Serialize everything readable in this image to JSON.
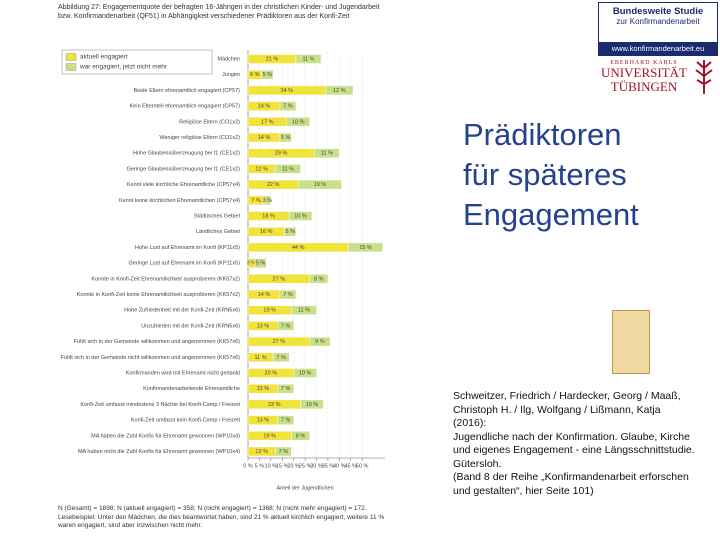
{
  "chart_data": {
    "type": "bar",
    "orientation": "horizontal",
    "stacked": true,
    "title": "Abbildung 27: Engagementquote der befragten 16-Jährigen in der christlichen Kinder- und Jugendarbeit bzw. Konfirmandenarbeit (QF51) in Abhängigkeit verschiedener Prädiktoren aus der Konfi-Zeit",
    "categories": [
      "Mädchen",
      "Jungen",
      "Beide Eltern ehrenamtlich engagiert (CP57)",
      "Kein Elternteil ehrenamtlich engagiert (CP57)",
      "Religiöse Eltern (CO1x2)",
      "Weniger religiöse Eltern (CO1x2)",
      "Hohe Glaubensüberzeugung bei t1 (CE1x2)",
      "Geringe Glaubensüberzeugung bei t1 (CE1x2)",
      "Kennt viele kirchliche Ehrenamtliche (CP57x4)",
      "Kennt keine kirchlichen Ehrenamtlichen (CP57x4)",
      "Städtisches Gebiet",
      "Ländliches Gebiet",
      "Hohe Lust auf Ehrenamt im Konfi (KP11x5)",
      "Geringe Lust auf Ehrenamt im Konfi (KP11x5)",
      "Konnte in Konfi-Zeit Ehrenamtlichkeit ausprobieren (KK57x2)",
      "Konnte in Konfi-Zeit keine Ehrenamtlichkeit ausprobieren (KK57x2)",
      "Hohe Zufriedenheit mit der Konfi-Zeit (KRN5x6)",
      "Unzufrieden mit der Konfi-Zeit (KRN5x6)",
      "Fühlt sich in der Gemeinde willkommen und angenommen (KK57x6)",
      "Fühlt sich in der Gemeinde nicht willkommen und angenommen (KK57x6)",
      "Konfirmanden wird mit Ehrenamt nicht gedankt",
      "Konfirmandenarbeitende Ehrenamtliche",
      "Konfi-Zeit umfasst mindestens 3 Nächte bei Konfi-Camp / Freizeit",
      "Konfi-Zeit umfasst kein Konfi-Camp / Freizeit",
      "MA haben die Zahl Konfis für Ehrenamt gewonnen (WP10x4)",
      "MA haben nicht die Zahl Konfis für Ehrenamt gewonnen (WP10x4)"
    ],
    "series": [
      {
        "name": "aktuell engagiert",
        "color": "#f2e33c",
        "values": [
          21,
          6,
          34,
          14,
          17,
          14,
          29,
          12,
          22,
          7,
          18,
          16,
          44,
          3,
          27,
          14,
          19,
          13,
          27,
          11,
          20,
          13,
          23,
          13,
          19,
          12
        ],
        "value_labels": [
          "21 %",
          "6 %",
          "34 %",
          "14 %",
          "17 %",
          "14 %",
          "29 %",
          "12 %",
          "22 %",
          "7 %",
          "18 %",
          "16 %",
          "44 %",
          "3 %",
          "27 %",
          "14 %",
          "19 %",
          "13 %",
          "27 %",
          "11 %",
          "20 %",
          "13 %",
          "23 %",
          "13 %",
          "19 %",
          "12 %"
        ]
      },
      {
        "name": "war engagiert, jetzt nicht mehr",
        "color": "#c9df8a",
        "values": [
          11,
          5,
          12,
          7,
          10,
          5,
          11,
          11,
          19,
          3,
          10,
          5,
          15,
          5,
          8,
          7,
          11,
          7,
          9,
          7,
          10,
          7,
          10,
          7,
          8,
          7
        ],
        "value_labels": [
          "11 %",
          "5 %",
          "12 %",
          "7 %",
          "10 %",
          "5 %",
          "11 %",
          "11 %",
          "19 %",
          "3 %",
          "10 %",
          "5 %",
          "15 %",
          "5 %",
          "8 %",
          "7 %",
          "11 %",
          "7 %",
          "9 %",
          "7 %",
          "10 %",
          "7 %",
          "10 %",
          "7 %",
          "8 %",
          "7 %"
        ]
      }
    ],
    "xlim": [
      0,
      60
    ],
    "xticks": [
      {
        "value": 0,
        "label": "0 %"
      },
      {
        "value": 5,
        "label": "5 %"
      },
      {
        "value": 10,
        "label": "10 %"
      },
      {
        "value": 15,
        "label": "15 %"
      },
      {
        "value": 20,
        "label": "20 %"
      },
      {
        "value": 25,
        "label": "25 %"
      },
      {
        "value": 30,
        "label": "30 %"
      },
      {
        "value": 35,
        "label": "35 %"
      },
      {
        "value": 40,
        "label": "40 %"
      },
      {
        "value": 45,
        "label": "45 %"
      },
      {
        "value": 50,
        "label": "50 %"
      }
    ],
    "xlabel": "Anteil der Jugendlichen",
    "legend": "top-left",
    "note": "N (Gesamt) = 1898; N (aktuell engagiert) = 358; N (nicht engagiert) = 1368; N (nicht mehr engagiert) = 172. Lesebeispiel: Unter den Mädchen, die dies beantwortet haben, sind 21 % aktuell kirchlich engagiert, weitere 11 % waren engagiert, sind aber inzwischen nicht mehr."
  },
  "logo": {
    "line1": "Bundesweite Studie",
    "line2": "zur Konfirmandenarbeit",
    "url": "www.konfirmandenarbeit.eu"
  },
  "university": {
    "line1": "EBERHARD KARLS",
    "line2": "UNIVERSITÄT",
    "line3": "TÜBINGEN"
  },
  "heading": [
    "Prädiktoren",
    "für späteres",
    "Engagement"
  ],
  "citation": [
    "Schweitzer, Friedrich / Hardecker, Georg / Maaß,",
    "Christoph H. / Ilg, Wolfgang / Lißmann, Katja",
    "(2016):",
    "Jugendliche nach der Konfirmation. Glaube, Kirche",
    "und eigenes Engagement - eine Längsschnittstudie.",
    "Gütersloh.",
    "(Band 8 der Reihe „Konfirmandenarbeit erforschen",
    "und gestalten“, hier Seite 101)"
  ]
}
